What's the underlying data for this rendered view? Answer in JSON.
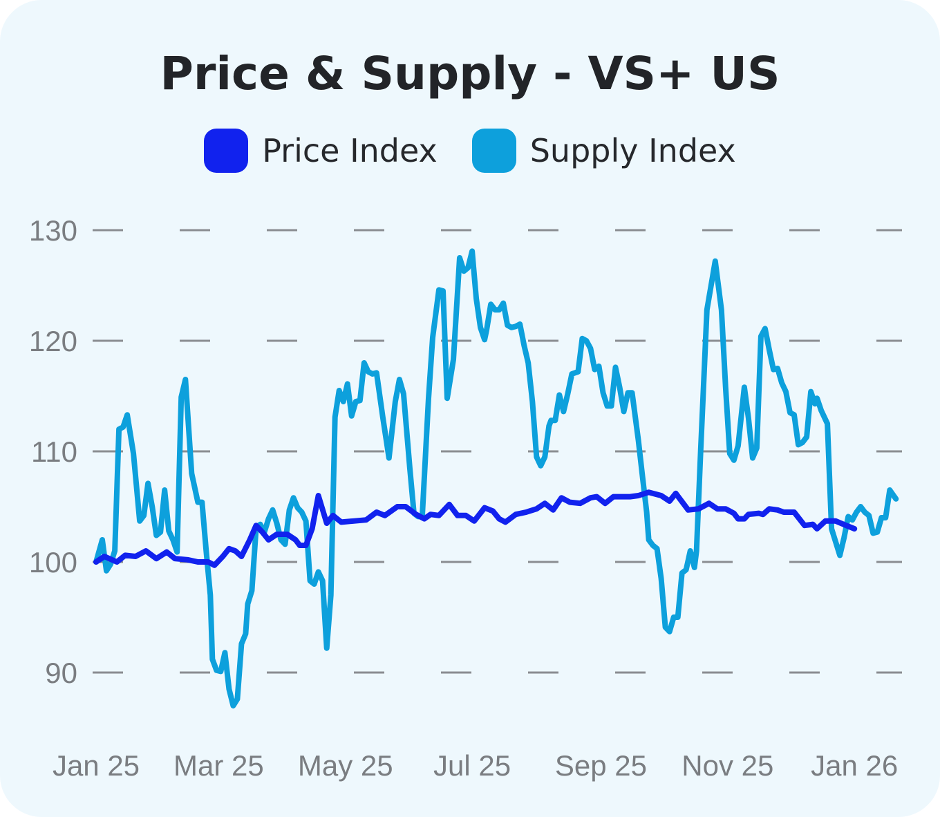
{
  "colors": {
    "background": "#eef8fd",
    "price": "#1122ee",
    "supply": "#0da0dc",
    "grid": "#8a8d91"
  },
  "chart_data": {
    "type": "line",
    "title": "Price & Supply - VS+ US",
    "legend_placement": "top",
    "grid": true,
    "ylim": [
      86,
      131
    ],
    "yticks": [
      90,
      100,
      110,
      120,
      130
    ],
    "xticks": [
      {
        "label": "Jan 25",
        "x": 0
      },
      {
        "label": "Mar 25",
        "x": 59
      },
      {
        "label": "May 25",
        "x": 120
      },
      {
        "label": "Jul 25",
        "x": 181
      },
      {
        "label": "Sep 25",
        "x": 243
      },
      {
        "label": "Nov 25",
        "x": 304
      },
      {
        "label": "Jan 26",
        "x": 365
      }
    ],
    "x_unit": "days since Jan 1 2025",
    "series": [
      {
        "name": "Price Index",
        "color": "#1122ee",
        "points": [
          [
            0,
            100
          ],
          [
            4,
            100.5
          ],
          [
            10,
            100
          ],
          [
            14,
            100.6
          ],
          [
            19,
            100.5
          ],
          [
            24,
            101
          ],
          [
            29,
            100.3
          ],
          [
            34,
            100.9
          ],
          [
            38,
            100.3
          ],
          [
            44,
            100.2
          ],
          [
            49,
            100
          ],
          [
            54,
            100
          ],
          [
            57,
            99.7
          ],
          [
            61,
            100.5
          ],
          [
            64,
            101.2
          ],
          [
            67,
            101
          ],
          [
            70,
            100.5
          ],
          [
            74,
            102
          ],
          [
            77,
            103.3
          ],
          [
            80,
            102.7
          ],
          [
            83,
            102
          ],
          [
            87,
            102.5
          ],
          [
            92,
            102.5
          ],
          [
            96,
            102
          ],
          [
            98,
            101.5
          ],
          [
            101,
            101.5
          ],
          [
            104,
            103
          ],
          [
            107,
            106
          ],
          [
            111,
            103.5
          ],
          [
            114,
            104.2
          ],
          [
            118,
            103.6
          ],
          [
            124,
            103.7
          ],
          [
            130,
            103.8
          ],
          [
            135,
            104.5
          ],
          [
            139,
            104.2
          ],
          [
            145,
            105
          ],
          [
            149,
            105
          ],
          [
            154,
            104.3
          ],
          [
            158,
            103.9
          ],
          [
            161,
            104.3
          ],
          [
            165,
            104.2
          ],
          [
            170,
            105.2
          ],
          [
            174,
            104.2
          ],
          [
            178,
            104.2
          ],
          [
            182,
            103.7
          ],
          [
            187,
            104.9
          ],
          [
            191,
            104.6
          ],
          [
            194,
            103.9
          ],
          [
            197,
            103.6
          ],
          [
            202,
            104.3
          ],
          [
            207,
            104.5
          ],
          [
            212,
            104.8
          ],
          [
            216,
            105.3
          ],
          [
            220,
            104.7
          ],
          [
            224,
            105.8
          ],
          [
            228,
            105.4
          ],
          [
            233,
            105.3
          ],
          [
            238,
            105.8
          ],
          [
            241,
            105.9
          ],
          [
            245,
            105.3
          ],
          [
            249,
            105.9
          ],
          [
            253,
            105.9
          ],
          [
            257,
            105.9
          ],
          [
            261,
            106
          ],
          [
            266,
            106.3
          ],
          [
            272,
            106
          ],
          [
            276,
            105.5
          ],
          [
            279,
            106.2
          ],
          [
            285,
            104.7
          ],
          [
            290,
            104.8
          ],
          [
            295,
            105.3
          ],
          [
            299,
            104.8
          ],
          [
            303,
            104.8
          ],
          [
            307,
            104.4
          ],
          [
            309,
            103.9
          ],
          [
            312,
            103.9
          ],
          [
            314,
            104.3
          ],
          [
            319,
            104.4
          ],
          [
            321,
            104.3
          ],
          [
            324,
            104.8
          ],
          [
            328,
            104.7
          ],
          [
            331,
            104.5
          ],
          [
            336,
            104.5
          ],
          [
            341,
            103.3
          ],
          [
            345,
            103.4
          ],
          [
            347,
            103
          ],
          [
            351,
            103.7
          ],
          [
            356,
            103.7
          ],
          [
            361,
            103.3
          ],
          [
            365,
            103
          ]
        ]
      },
      {
        "name": "Supply Index",
        "color": "#0da0dc",
        "points": [
          [
            0,
            100
          ],
          [
            3,
            102
          ],
          [
            5,
            99.2
          ],
          [
            7,
            99.8
          ],
          [
            9,
            101
          ],
          [
            11,
            112
          ],
          [
            13,
            112.2
          ],
          [
            15,
            113.3
          ],
          [
            18,
            109.8
          ],
          [
            21,
            103.7
          ],
          [
            23,
            104.2
          ],
          [
            25,
            107.1
          ],
          [
            27,
            105
          ],
          [
            29,
            102.4
          ],
          [
            31,
            102.7
          ],
          [
            33,
            106.5
          ],
          [
            35,
            102.8
          ],
          [
            37,
            102
          ],
          [
            39,
            100.9
          ],
          [
            41,
            114.9
          ],
          [
            43,
            116.5
          ],
          [
            46,
            108
          ],
          [
            49,
            105.4
          ],
          [
            51,
            105.4
          ],
          [
            53,
            101
          ],
          [
            55,
            97
          ],
          [
            56,
            91.2
          ],
          [
            58,
            90.2
          ],
          [
            60,
            90.1
          ],
          [
            62,
            91.8
          ],
          [
            64,
            88.5
          ],
          [
            66,
            87
          ],
          [
            68,
            87.6
          ],
          [
            70,
            92.6
          ],
          [
            72,
            93.5
          ],
          [
            73,
            96.2
          ],
          [
            75,
            97.4
          ],
          [
            77,
            103
          ],
          [
            79,
            103.4
          ],
          [
            81,
            102.7
          ],
          [
            83,
            103.9
          ],
          [
            85,
            104.7
          ],
          [
            87,
            103.5
          ],
          [
            89,
            102
          ],
          [
            91,
            101.6
          ],
          [
            93,
            104.7
          ],
          [
            95,
            105.8
          ],
          [
            97,
            104.9
          ],
          [
            99,
            104.5
          ],
          [
            101,
            103.7
          ],
          [
            103,
            98.3
          ],
          [
            105,
            98
          ],
          [
            107,
            99.1
          ],
          [
            109,
            98.3
          ],
          [
            111,
            92.2
          ],
          [
            113,
            97
          ],
          [
            115,
            113.1
          ],
          [
            117,
            115.5
          ],
          [
            119,
            114.5
          ],
          [
            121,
            116.1
          ],
          [
            123,
            113.2
          ],
          [
            125,
            114.5
          ],
          [
            127,
            114.6
          ],
          [
            129,
            118
          ],
          [
            131,
            117.2
          ],
          [
            133,
            117
          ],
          [
            135,
            117.1
          ],
          [
            138,
            113.1
          ],
          [
            141,
            109.4
          ],
          [
            144,
            114.5
          ],
          [
            146,
            116.5
          ],
          [
            148,
            115.2
          ],
          [
            151,
            108.5
          ],
          [
            153,
            104.4
          ],
          [
            155,
            104.1
          ],
          [
            157,
            104.1
          ],
          [
            160,
            114.8
          ],
          [
            162,
            120.3
          ],
          [
            165,
            124.6
          ],
          [
            167,
            124.5
          ],
          [
            169,
            114.8
          ],
          [
            172,
            118.3
          ],
          [
            175,
            127.5
          ],
          [
            177,
            126.3
          ],
          [
            179,
            126.6
          ],
          [
            181,
            128.1
          ],
          [
            183,
            123.8
          ],
          [
            185,
            121.2
          ],
          [
            187,
            120.1
          ],
          [
            188,
            121
          ],
          [
            190,
            123.3
          ],
          [
            192,
            122.8
          ],
          [
            194,
            122.8
          ],
          [
            196,
            123.4
          ],
          [
            198,
            121.4
          ],
          [
            200,
            121.2
          ],
          [
            202,
            121.3
          ],
          [
            204,
            121.5
          ],
          [
            206,
            119.6
          ],
          [
            208,
            118
          ],
          [
            210,
            114.5
          ],
          [
            212,
            109.5
          ],
          [
            214,
            108.7
          ],
          [
            216,
            109.5
          ],
          [
            218,
            112.3
          ],
          [
            219,
            112.8
          ],
          [
            221,
            112.8
          ],
          [
            223,
            115.1
          ],
          [
            225,
            113.6
          ],
          [
            227,
            115.2
          ],
          [
            229,
            117
          ],
          [
            232,
            117.2
          ],
          [
            234,
            120.2
          ],
          [
            236,
            120
          ],
          [
            238,
            119.3
          ],
          [
            240,
            117.4
          ],
          [
            242,
            117.7
          ],
          [
            244,
            115.3
          ],
          [
            246,
            114.1
          ],
          [
            248,
            114.1
          ],
          [
            250,
            117.6
          ],
          [
            252,
            115.8
          ],
          [
            254,
            113.6
          ],
          [
            256,
            115.3
          ],
          [
            258,
            115.3
          ],
          [
            261,
            111
          ],
          [
            263,
            107.7
          ],
          [
            265,
            104.5
          ],
          [
            266,
            102
          ],
          [
            268,
            101.5
          ],
          [
            270,
            101.2
          ],
          [
            272,
            98.5
          ],
          [
            274,
            94.1
          ],
          [
            276,
            93.7
          ],
          [
            278,
            95
          ],
          [
            280,
            95
          ],
          [
            282,
            99
          ],
          [
            284,
            99.3
          ],
          [
            286,
            101
          ],
          [
            288,
            99.5
          ],
          [
            289,
            101
          ],
          [
            291,
            110
          ],
          [
            294,
            122.8
          ],
          [
            296,
            125
          ],
          [
            298,
            127.2
          ],
          [
            301,
            122.8
          ],
          [
            303,
            115.8
          ],
          [
            305,
            109.8
          ],
          [
            307,
            109.2
          ],
          [
            309,
            110.5
          ],
          [
            312,
            115.8
          ],
          [
            314,
            113
          ],
          [
            316,
            109.4
          ],
          [
            318,
            110.3
          ],
          [
            320,
            120.4
          ],
          [
            322,
            121.1
          ],
          [
            324,
            119.2
          ],
          [
            326,
            117.4
          ],
          [
            328,
            117.5
          ],
          [
            330,
            116.2
          ],
          [
            332,
            115.4
          ],
          [
            334,
            113.5
          ],
          [
            336,
            113.3
          ],
          [
            338,
            110.6
          ],
          [
            340,
            110.8
          ],
          [
            342,
            111.3
          ],
          [
            344,
            115.4
          ],
          [
            346,
            114.3
          ],
          [
            347,
            114.8
          ],
          [
            349,
            113.7
          ],
          [
            352,
            112.5
          ],
          [
            354,
            103
          ],
          [
            356,
            101.8
          ],
          [
            358,
            100.6
          ],
          [
            360,
            102.2
          ],
          [
            362,
            104.1
          ],
          [
            364,
            103.8
          ],
          [
            366,
            104.5
          ],
          [
            368,
            105
          ],
          [
            370,
            104.5
          ],
          [
            372,
            104.2
          ],
          [
            374,
            102.6
          ],
          [
            376,
            102.7
          ],
          [
            378,
            104
          ],
          [
            380,
            104
          ],
          [
            382,
            106.5
          ],
          [
            385,
            105.7
          ]
        ]
      }
    ]
  }
}
